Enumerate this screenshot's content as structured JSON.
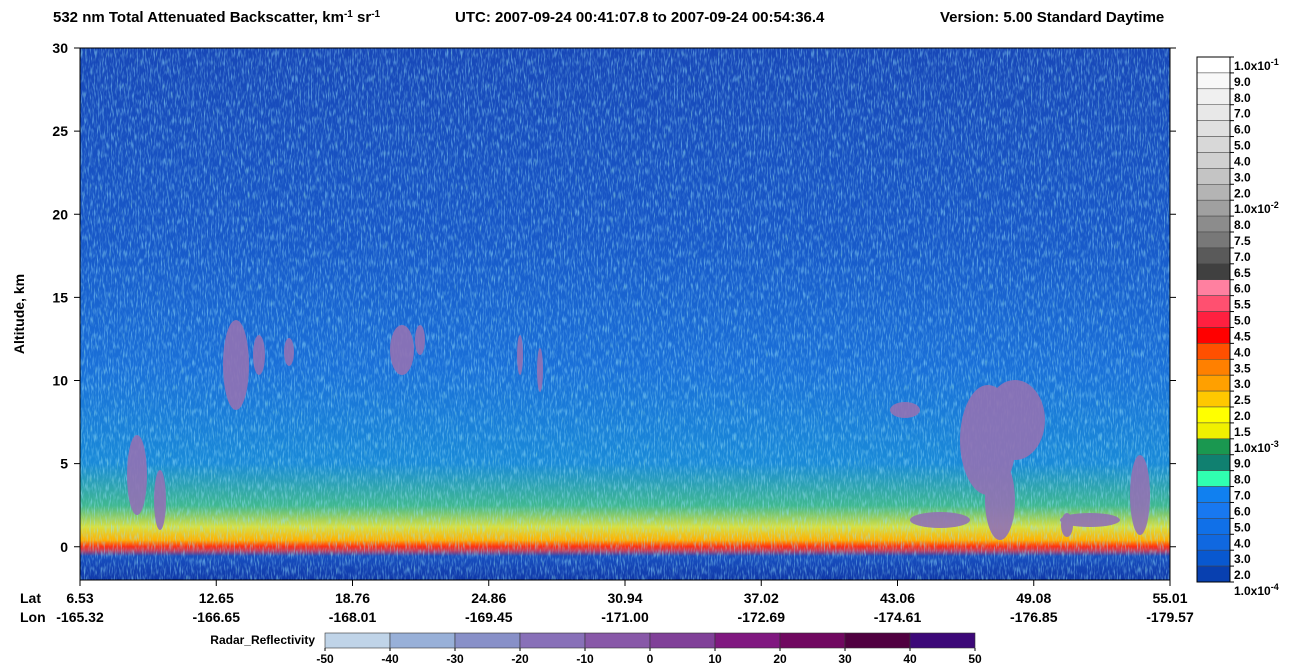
{
  "chart_data": {
    "type": "curtain",
    "title": [
      {
        "text": "532 nm Total Attenuated Backscatter, km"
      },
      {
        "sup": "-1"
      },
      {
        "text": " sr"
      },
      {
        "sup": "-1"
      },
      {
        "text": "UTC:  2007-09-24 00:41:07.8  to  2007-09-24 00:54:36.4"
      },
      {
        "text": "Version: 5.00  Standard  Daytime"
      }
    ],
    "ylabel": "Altitude, km",
    "ylim": [
      -2,
      30
    ],
    "yticks": [
      0,
      5,
      10,
      15,
      20,
      25,
      30
    ],
    "x_rows": [
      {
        "name": "Lat",
        "labels": [
          "6.53",
          "12.65",
          "18.76",
          "24.86",
          "30.94",
          "37.02",
          "43.06",
          "49.08",
          "55.01"
        ]
      },
      {
        "name": "Lon",
        "labels": [
          "-165.32",
          "-166.65",
          "-168.01",
          "-169.45",
          "-171.00",
          "-172.69",
          "-174.61",
          "-176.85",
          "-179.57"
        ]
      }
    ],
    "colorbar": {
      "labels": [
        {
          "text": "1.0x10",
          "sup": "-1"
        },
        "9.0",
        "8.0",
        "7.0",
        "6.0",
        "5.0",
        "4.0",
        "3.0",
        "2.0",
        {
          "text": "1.0x10",
          "sup": "-2"
        },
        "8.0",
        "7.5",
        "7.0",
        "6.5",
        "6.0",
        "5.5",
        "5.0",
        "4.5",
        "4.0",
        "3.5",
        "3.0",
        "2.5",
        "2.0",
        "1.5",
        {
          "text": "1.0x10",
          "sup": "-3"
        },
        "9.0",
        "8.0",
        "7.0",
        "6.0",
        "5.0",
        "4.0",
        "3.0",
        "2.0",
        {
          "text": "1.0x10",
          "sup": "-4"
        }
      ],
      "colors": [
        "#ffffff",
        "#f8f8f8",
        "#f0f0f0",
        "#e8e8e8",
        "#e0e0e0",
        "#d8d8d8",
        "#d0d0d0",
        "#c4c4c4",
        "#b4b4b4",
        "#a0a0a0",
        "#8c8c8c",
        "#787878",
        "#5a5a5a",
        "#404040",
        "#ff80a0",
        "#ff5070",
        "#ff2040",
        "#ff0000",
        "#ff5000",
        "#ff8000",
        "#ffa000",
        "#ffc800",
        "#ffff00",
        "#f0f000",
        "#1a9850",
        "#108070",
        "#30ffb0",
        "#1080f0",
        "#1878f0",
        "#1070e8",
        "#1068e0",
        "#0858d0",
        "#0840b0",
        "#0030a0"
      ]
    },
    "radar_colorbar": {
      "label": "Radar_Reflectivity",
      "ticks": [
        -50,
        -40,
        -30,
        -20,
        -10,
        0,
        10,
        20,
        30,
        40,
        50
      ],
      "colors": [
        "#c0d4e8",
        "#98b0d8",
        "#8890c8",
        "#8870b8",
        "#8858a8",
        "#804098",
        "#801880",
        "#700860",
        "#500040",
        "#3c0878"
      ]
    }
  }
}
